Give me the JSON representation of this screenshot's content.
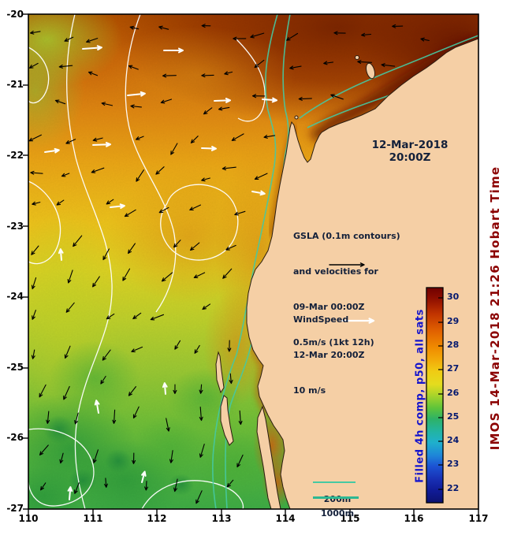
{
  "figure": {
    "axes": {
      "lon": [
        "110",
        "111",
        "112",
        "113",
        "114",
        "115",
        "116",
        "117"
      ],
      "lat": [
        "-20",
        "-21",
        "-22",
        "-23",
        "-24",
        "-25",
        "-26",
        "-27"
      ]
    },
    "date_line1": "12-Mar-2018",
    "date_line2": "20:00Z",
    "gsla_lines": [
      "GSLA (0.1m contours)",
      "and velocities for",
      "09-Mar 00:00Z",
      "0.5m/s (1kt 12h)"
    ],
    "wind_lines": [
      "WindSpeed",
      "12-Mar 20:00Z",
      "10 m/s"
    ],
    "depth_labels": [
      "200m",
      "1000m"
    ],
    "colorbar": {
      "label": "Filled 4h comp, p50, all sats",
      "ticks": [
        "30",
        "29",
        "28",
        "27",
        "26",
        "25",
        "24",
        "23",
        "22"
      ]
    },
    "credit": "IMOS 14-Mar-2018 21:26 Hobart Time",
    "colors": {
      "credit": "#8b0000",
      "colorbar_label": "#1414cc",
      "land": "#f5cfa5",
      "contour_gsla": "#ffffff",
      "contour_depth": "#46c9a2"
    }
  },
  "map": {
    "type": "sst_field_with_velocity_and_wind_vectors",
    "lon_range": [
      110,
      117
    ],
    "lat_range": [
      -27,
      -20
    ],
    "colorbar_range": [
      22,
      30
    ]
  }
}
